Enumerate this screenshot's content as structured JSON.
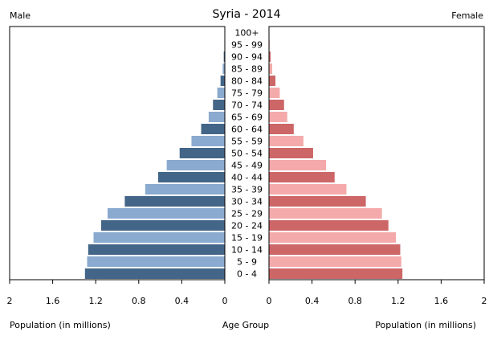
{
  "chart_data": {
    "type": "bar",
    "orientation": "horizontal-population-pyramid",
    "title": "Syria - 2014",
    "left_label": "Male",
    "right_label": "Female",
    "x_label_left": "Population (in millions)",
    "x_label_center": "Age Group",
    "x_label_right": "Population (in millions)",
    "xlim": [
      0,
      2
    ],
    "x_ticks": [
      "2",
      "1.6",
      "1.2",
      "0.8",
      "0.4",
      "0"
    ],
    "x_ticks_right": [
      "0",
      "0.4",
      "0.8",
      "1.2",
      "1.6",
      "2"
    ],
    "categories": [
      "0 - 4",
      "5 - 9",
      "10 - 14",
      "15 - 19",
      "20 - 24",
      "25 - 29",
      "30 - 34",
      "35 - 39",
      "40 - 44",
      "45 - 49",
      "50 - 54",
      "55 - 59",
      "60 - 64",
      "65 - 69",
      "70 - 74",
      "75 - 79",
      "80 - 84",
      "85 - 89",
      "90 - 94",
      "95 - 99",
      "100+"
    ],
    "series": [
      {
        "name": "Male",
        "values": [
          1.3,
          1.28,
          1.27,
          1.22,
          1.15,
          1.09,
          0.93,
          0.74,
          0.62,
          0.54,
          0.42,
          0.31,
          0.22,
          0.15,
          0.11,
          0.07,
          0.04,
          0.02,
          0.01,
          0.004,
          0.001
        ],
        "colors": [
          "#436688",
          "#8aaacf"
        ]
      },
      {
        "name": "Female",
        "values": [
          1.24,
          1.23,
          1.22,
          1.18,
          1.11,
          1.05,
          0.9,
          0.72,
          0.61,
          0.53,
          0.41,
          0.32,
          0.23,
          0.17,
          0.14,
          0.1,
          0.06,
          0.03,
          0.015,
          0.006,
          0.002
        ],
        "colors": [
          "#cd6666",
          "#f4aaaa"
        ]
      }
    ],
    "grid": false,
    "legend": "none"
  }
}
